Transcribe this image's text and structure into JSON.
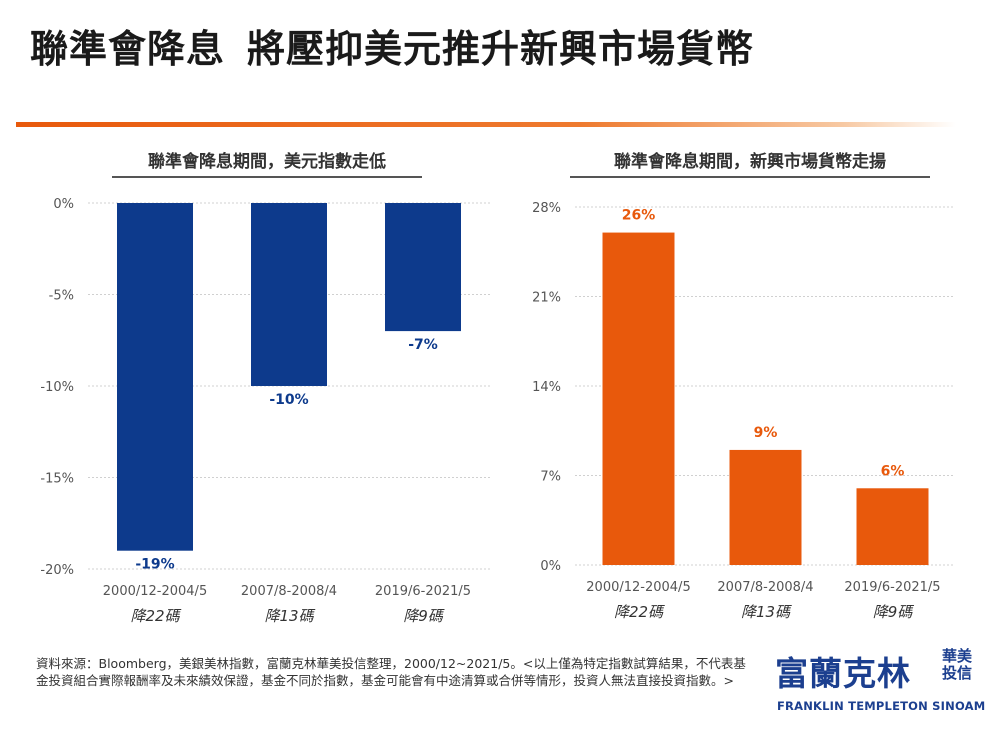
{
  "header": {
    "title_part1": "聯準會降息",
    "title_part2": "將壓抑美元推升新興市場貨幣"
  },
  "colors": {
    "accent": "#e8590c",
    "usd_bar": "#0d3a8c",
    "em_bar": "#e8590c",
    "brand": "#1c3f8f"
  },
  "chart_data": [
    {
      "type": "bar",
      "title": "聯準會降息期間，美元指數走低",
      "categories": [
        "2000/12-2004/5",
        "2007/8-2008/4",
        "2019/6-2021/5"
      ],
      "sublabels": [
        "降22碼",
        "降13碼",
        "降9碼"
      ],
      "values": [
        -19,
        -10,
        -7
      ],
      "data_labels": [
        "-19%",
        "-10%",
        "-7%"
      ],
      "ylim": [
        -20,
        0
      ],
      "yticks": [
        0,
        -5,
        -10,
        -15,
        -20
      ],
      "ytick_labels": [
        "0%",
        "-5%",
        "-10%",
        "-15%",
        "-20%"
      ],
      "grid": true,
      "color": "#0d3a8c",
      "label_color": "#0d3a8c"
    },
    {
      "type": "bar",
      "title": "聯準會降息期間，新興市場貨幣走揚",
      "categories": [
        "2000/12-2004/5",
        "2007/8-2008/4",
        "2019/6-2021/5"
      ],
      "sublabels": [
        "降22碼",
        "降13碼",
        "降9碼"
      ],
      "values": [
        26,
        9,
        6
      ],
      "data_labels": [
        "26%",
        "9%",
        "6%"
      ],
      "ylim": [
        0,
        28
      ],
      "yticks": [
        28,
        21,
        14,
        7,
        0
      ],
      "ytick_labels": [
        "28%",
        "21%",
        "14%",
        "7%",
        "0%"
      ],
      "grid": true,
      "color": "#e8590c",
      "label_color": "#e8590c"
    }
  ],
  "footnote": "資料來源：Bloomberg，美銀美林指數，富蘭克林華美投信整理，2000/12~2021/5。<以上僅為特定指數試算結果，不代表基金投資組合實際報酬率及未來績效保證，基金不同於指數，基金可能會有中途清算或合併等情形，投資人無法直接投資指數。>",
  "brand": {
    "name": "富蘭克林",
    "side_line1": "華美",
    "side_line2": "投信",
    "english": "FRANKLIN TEMPLETON SINOAM"
  }
}
